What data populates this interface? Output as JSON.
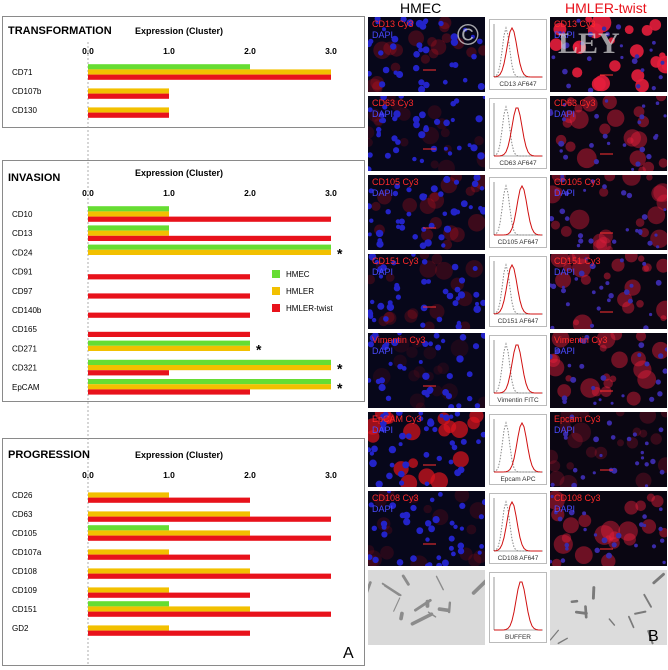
{
  "colors": {
    "HMEC": "#66dd33",
    "HMLER": "#f2c000",
    "HMLER-twist": "#e8121b"
  },
  "panel_a_letter": "A",
  "panel_b_letter": "B",
  "chart_data": [
    {
      "type": "bar",
      "orientation": "horizontal",
      "title": "TRANSFORMATION",
      "xlabel": "Expression (Cluster)",
      "xlim": [
        0,
        3
      ],
      "xticks": [
        "0.0",
        "1.0",
        "2.0",
        "3.0"
      ],
      "categories": [
        "CD71",
        "CD107b",
        "CD130"
      ],
      "series": [
        {
          "name": "HMEC",
          "values": [
            2,
            0,
            0
          ]
        },
        {
          "name": "HMLER",
          "values": [
            3,
            1,
            1
          ]
        },
        {
          "name": "HMLER-twist",
          "values": [
            3,
            1,
            1
          ]
        }
      ],
      "significant": []
    },
    {
      "type": "bar",
      "orientation": "horizontal",
      "title": "INVASION",
      "xlabel": "Expression (Cluster)",
      "xlim": [
        0,
        3
      ],
      "xticks": [
        "0.0",
        "1.0",
        "2.0",
        "3.0"
      ],
      "categories": [
        "CD10",
        "CD13",
        "CD24",
        "CD91",
        "CD97",
        "CD140b",
        "CD165",
        "CD271",
        "CD321",
        "EpCAM"
      ],
      "series": [
        {
          "name": "HMEC",
          "values": [
            1,
            1,
            3,
            0,
            0,
            0,
            0,
            2,
            3,
            3
          ]
        },
        {
          "name": "HMLER",
          "values": [
            1,
            1,
            3,
            0,
            0,
            0,
            0,
            2,
            3,
            3
          ]
        },
        {
          "name": "HMLER-twist",
          "values": [
            3,
            3,
            0,
            2,
            2,
            2,
            2,
            0,
            1,
            2
          ]
        }
      ],
      "legend": [
        "HMEC",
        "HMLER",
        "HMLER-twist"
      ],
      "legend_position": "right",
      "significant": [
        "CD24",
        "CD271",
        "CD321",
        "EpCAM"
      ],
      "significance_marker": "*"
    },
    {
      "type": "bar",
      "orientation": "horizontal",
      "title": "PROGRESSION",
      "xlabel": "Expression (Cluster)",
      "xlim": [
        0,
        3
      ],
      "xticks": [
        "0.0",
        "1.0",
        "2.0",
        "3.0"
      ],
      "categories": [
        "CD26",
        "CD63",
        "CD105",
        "CD107a",
        "CD108",
        "CD109",
        "CD151",
        "GD2"
      ],
      "series": [
        {
          "name": "HMEC",
          "values": [
            0,
            0,
            1,
            0,
            0,
            0,
            1,
            0
          ]
        },
        {
          "name": "HMLER",
          "values": [
            1,
            2,
            2,
            1,
            2,
            1,
            2,
            1
          ]
        },
        {
          "name": "HMLER-twist",
          "values": [
            2,
            3,
            3,
            2,
            3,
            2,
            3,
            2
          ]
        }
      ],
      "significant": []
    }
  ],
  "panel_b": {
    "col_left": "HMEC",
    "col_right": "HMLER-twist",
    "dapi": "DAPI",
    "rows": [
      {
        "marker": "CD13 Cy3",
        "flow": "CD13 AF647",
        "left_int": 0.25,
        "right_int": 0.9,
        "overlay": "©"
      },
      {
        "marker": "CD63 Cy3",
        "flow": "CD63 AF647",
        "left_int": 0.15,
        "right_int": 0.45
      },
      {
        "marker": "CD105 Cy3",
        "flow": "CD105 AF647",
        "left_int": 0.25,
        "right_int": 0.4
      },
      {
        "marker": "CD151 Cy3",
        "flow": "CD151 AF647",
        "left_int": 0.2,
        "right_int": 0.45
      },
      {
        "marker": "Vimentin Cy3",
        "flow": "Vimentin FITC",
        "left_int": 0.1,
        "right_int": 0.45
      },
      {
        "marker": "EpCAM Cy3",
        "flow": "Epcam APC",
        "left_int": 0.7,
        "right_int": 0.2,
        "right_marker": "Epcam Cy3"
      },
      {
        "marker": "CD108 Cy3",
        "flow": "CD108 AF647",
        "left_int": 0.15,
        "right_int": 0.45
      },
      {
        "marker": "",
        "flow": "BUFFER",
        "left_int": 0,
        "right_int": 0,
        "brightfield": true
      }
    ],
    "watermark": "LEY"
  }
}
